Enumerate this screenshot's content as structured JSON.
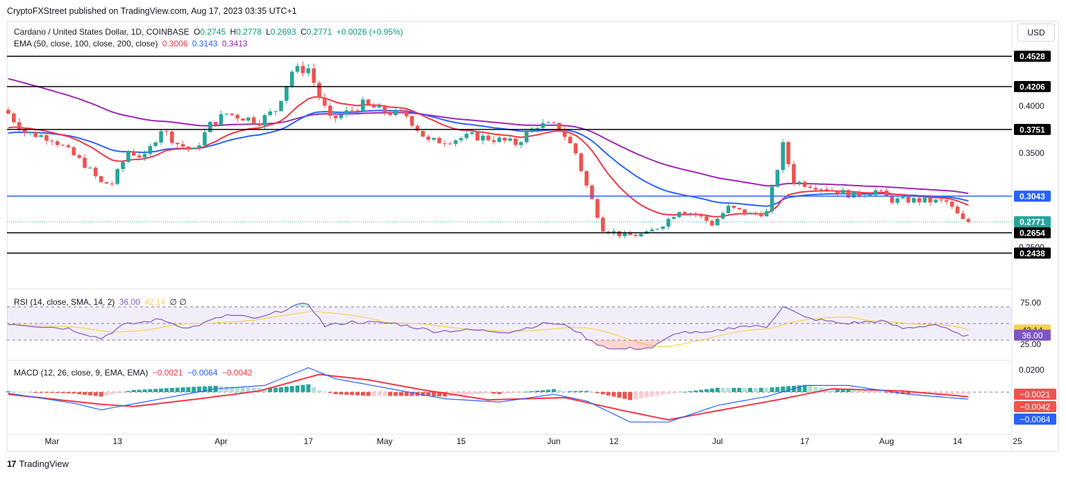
{
  "header": {
    "published_text": "CryptoFXStreet published on TradingView.com, Aug 17, 2023 03:35 UTC+1"
  },
  "currency_button": "USD",
  "legend": {
    "symbol": "Cardano / United States Dollar, 1D, COINBASE",
    "o_label": "O",
    "o": "0.2745",
    "h_label": "H",
    "h": "0.2778",
    "l_label": "L",
    "l": "0.2693",
    "c_label": "C",
    "c": "0.2771",
    "change": "+0.0026 (+0.95%)",
    "ema_label": "EMA (50, close, 100, close, 200, close)",
    "ema50": "0.3006",
    "ema100": "0.3143",
    "ema200": "0.3413",
    "rsi_label": "RSI (14, close, SMA, 14, 2)",
    "rsi_val": "36.00",
    "rsi_sma_val": "42.14",
    "rsi_extra": "∅ ∅",
    "macd_label": "MACD (12, 26, close, 9, EMA, EMA)",
    "macd_hist": "−0.0021",
    "macd_line": "−0.0064",
    "macd_signal": "−0.0042"
  },
  "colors": {
    "up": "#26a69a",
    "down": "#ef5350",
    "ema50": "#f23645",
    "ema100": "#2962ff",
    "ema200": "#9c27b0",
    "rsi": "#7e57c2",
    "rsi_sma": "#f7d154",
    "macd_line": "#2962ff",
    "macd_signal": "#f23645",
    "hist_pos_strong": "#26a69a",
    "hist_pos_weak": "#b2dfdb",
    "hist_neg_strong": "#ef5350",
    "hist_neg_weak": "#ffcdd2",
    "level_black": "#000000",
    "level_blue": "#2962ff"
  },
  "tv_brand": {
    "mark": "17",
    "name": "TradingView"
  },
  "chart_data": [
    {
      "type": "candlestick",
      "title": "Cardano / United States Dollar, 1D, COINBASE",
      "x_tick_labels": [
        "Mar",
        "13",
        "Apr",
        "17",
        "May",
        "15",
        "Jun",
        "12",
        "Jul",
        "17",
        "Aug",
        "14",
        "25"
      ],
      "y_tick_labels": [
        "0.4000",
        "0.3500",
        "0.2500"
      ],
      "ylim": [
        0.225,
        0.47
      ],
      "price_levels": [
        {
          "label": "0.4528",
          "value": 0.4528,
          "color": "black"
        },
        {
          "label": "0.4206",
          "value": 0.4206,
          "color": "black"
        },
        {
          "label": "0.3751",
          "value": 0.3751,
          "color": "black"
        },
        {
          "label": "0.3043",
          "value": 0.3043,
          "color": "blue"
        },
        {
          "label": "0.2654",
          "value": 0.2654,
          "color": "black"
        },
        {
          "label": "0.2438",
          "value": 0.2438,
          "color": "black"
        }
      ],
      "last_price": {
        "label": "0.2771",
        "value": 0.2771
      },
      "series": [
        {
          "name": "EMA 50",
          "last": 0.3006
        },
        {
          "name": "EMA 100",
          "last": 0.3143
        },
        {
          "name": "EMA 200",
          "last": 0.3413
        }
      ],
      "close_path": [
        [
          "2023-02-21",
          0.392
        ],
        [
          "2023-02-24",
          0.372
        ],
        [
          "2023-03-01",
          0.366
        ],
        [
          "2023-03-04",
          0.352
        ],
        [
          "2023-03-07",
          0.338
        ],
        [
          "2023-03-10",
          0.318
        ],
        [
          "2023-03-12",
          0.318
        ],
        [
          "2023-03-15",
          0.352
        ],
        [
          "2023-03-18",
          0.345
        ],
        [
          "2023-03-21",
          0.376
        ],
        [
          "2023-03-24",
          0.36
        ],
        [
          "2023-03-27",
          0.352
        ],
        [
          "2023-03-30",
          0.38
        ],
        [
          "2023-04-02",
          0.392
        ],
        [
          "2023-04-05",
          0.388
        ],
        [
          "2023-04-08",
          0.384
        ],
        [
          "2023-04-11",
          0.396
        ],
        [
          "2023-04-14",
          0.437
        ],
        [
          "2023-04-17",
          0.44
        ],
        [
          "2023-04-19",
          0.41
        ],
        [
          "2023-04-21",
          0.385
        ],
        [
          "2023-04-24",
          0.393
        ],
        [
          "2023-04-27",
          0.402
        ],
        [
          "2023-05-01",
          0.394
        ],
        [
          "2023-05-05",
          0.39
        ],
        [
          "2023-05-09",
          0.362
        ],
        [
          "2023-05-13",
          0.364
        ],
        [
          "2023-05-17",
          0.368
        ],
        [
          "2023-05-21",
          0.365
        ],
        [
          "2023-05-25",
          0.36
        ],
        [
          "2023-05-29",
          0.38
        ],
        [
          "2023-06-02",
          0.378
        ],
        [
          "2023-06-05",
          0.35
        ],
        [
          "2023-06-07",
          0.315
        ],
        [
          "2023-06-10",
          0.27
        ],
        [
          "2023-06-14",
          0.262
        ],
        [
          "2023-06-18",
          0.264
        ],
        [
          "2023-06-21",
          0.275
        ],
        [
          "2023-06-24",
          0.29
        ],
        [
          "2023-06-27",
          0.285
        ],
        [
          "2023-06-30",
          0.275
        ],
        [
          "2023-07-03",
          0.292
        ],
        [
          "2023-07-07",
          0.285
        ],
        [
          "2023-07-10",
          0.287
        ],
        [
          "2023-07-13",
          0.358
        ],
        [
          "2023-07-15",
          0.32
        ],
        [
          "2023-07-19",
          0.315
        ],
        [
          "2023-07-22",
          0.311
        ],
        [
          "2023-07-26",
          0.305
        ],
        [
          "2023-07-30",
          0.31
        ],
        [
          "2023-08-02",
          0.3
        ],
        [
          "2023-08-06",
          0.3
        ],
        [
          "2023-08-09",
          0.299
        ],
        [
          "2023-08-12",
          0.298
        ],
        [
          "2023-08-15",
          0.278
        ],
        [
          "2023-08-16",
          0.2771
        ]
      ]
    },
    {
      "type": "line",
      "title": "RSI (14, close, SMA, 14, 2)",
      "y_tick_labels": [
        "75.00",
        "25.00"
      ],
      "ylim": [
        15,
        85
      ],
      "levels": [
        70,
        50,
        30
      ],
      "series": [
        {
          "name": "RSI",
          "last": 36.0,
          "label": "36.00"
        },
        {
          "name": "RSI SMA",
          "last": 42.14,
          "label": "42.14"
        }
      ],
      "rsi_path": [
        [
          "2023-02-21",
          50
        ],
        [
          "2023-03-04",
          44
        ],
        [
          "2023-03-10",
          32
        ],
        [
          "2023-03-14",
          48
        ],
        [
          "2023-03-21",
          55
        ],
        [
          "2023-03-26",
          44
        ],
        [
          "2023-04-02",
          60
        ],
        [
          "2023-04-08",
          56
        ],
        [
          "2023-04-14",
          70
        ],
        [
          "2023-04-17",
          74
        ],
        [
          "2023-04-20",
          47
        ],
        [
          "2023-04-25",
          52
        ],
        [
          "2023-05-03",
          50
        ],
        [
          "2023-05-10",
          41
        ],
        [
          "2023-05-17",
          42
        ],
        [
          "2023-05-24",
          40
        ],
        [
          "2023-05-31",
          51
        ],
        [
          "2023-06-04",
          46
        ],
        [
          "2023-06-08",
          28
        ],
        [
          "2023-06-12",
          19
        ],
        [
          "2023-06-19",
          21
        ],
        [
          "2023-06-24",
          40
        ],
        [
          "2023-06-29",
          38
        ],
        [
          "2023-07-05",
          47
        ],
        [
          "2023-07-10",
          46
        ],
        [
          "2023-07-13",
          71
        ],
        [
          "2023-07-17",
          57
        ],
        [
          "2023-07-24",
          50
        ],
        [
          "2023-07-31",
          53
        ],
        [
          "2023-08-04",
          44
        ],
        [
          "2023-08-10",
          49
        ],
        [
          "2023-08-14",
          37
        ],
        [
          "2023-08-16",
          36
        ]
      ]
    },
    {
      "type": "line",
      "title": "MACD (12, 26, close, 9, EMA, EMA)",
      "y_tick_labels": [
        "0.0200"
      ],
      "ylim": [
        -0.032,
        0.024
      ],
      "series": [
        {
          "name": "Histogram",
          "last": -0.0021,
          "label": "−0.0021"
        },
        {
          "name": "Signal",
          "last": -0.0042,
          "label": "−0.0042"
        },
        {
          "name": "MACD",
          "last": -0.0064,
          "label": "−0.0064"
        }
      ],
      "macd_path": [
        [
          "2023-02-21",
          -0.001
        ],
        [
          "2023-03-05",
          -0.01
        ],
        [
          "2023-03-10",
          -0.016
        ],
        [
          "2023-03-20",
          -0.007
        ],
        [
          "2023-03-31",
          0.003
        ],
        [
          "2023-04-09",
          0.006
        ],
        [
          "2023-04-17",
          0.022
        ],
        [
          "2023-04-22",
          0.012
        ],
        [
          "2023-05-01",
          0.004
        ],
        [
          "2023-05-12",
          -0.006
        ],
        [
          "2023-05-22",
          -0.009
        ],
        [
          "2023-06-01",
          -0.002
        ],
        [
          "2023-06-07",
          -0.008
        ],
        [
          "2023-06-15",
          -0.027
        ],
        [
          "2023-06-22",
          -0.027
        ],
        [
          "2023-07-01",
          -0.012
        ],
        [
          "2023-07-10",
          -0.004
        ],
        [
          "2023-07-17",
          0.006
        ],
        [
          "2023-07-25",
          0.006
        ],
        [
          "2023-08-05",
          -0.002
        ],
        [
          "2023-08-16",
          -0.0064
        ]
      ],
      "signal_path": [
        [
          "2023-02-21",
          -0.002
        ],
        [
          "2023-03-10",
          -0.011
        ],
        [
          "2023-03-16",
          -0.013
        ],
        [
          "2023-03-28",
          -0.006
        ],
        [
          "2023-04-08",
          0.001
        ],
        [
          "2023-04-19",
          0.016
        ],
        [
          "2023-04-28",
          0.011
        ],
        [
          "2023-05-08",
          0.002
        ],
        [
          "2023-05-20",
          -0.007
        ],
        [
          "2023-06-03",
          -0.005
        ],
        [
          "2023-06-14",
          -0.017
        ],
        [
          "2023-06-22",
          -0.025
        ],
        [
          "2023-07-03",
          -0.015
        ],
        [
          "2023-07-12",
          -0.007
        ],
        [
          "2023-07-22",
          0.003
        ],
        [
          "2023-08-04",
          0.001
        ],
        [
          "2023-08-16",
          -0.0042
        ]
      ]
    }
  ]
}
